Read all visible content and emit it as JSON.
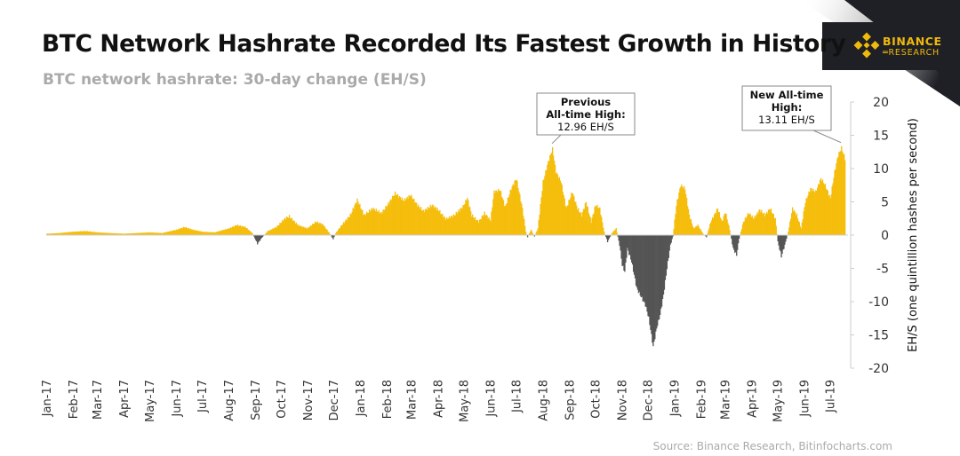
{
  "header": {
    "title": "BTC Network Hashrate Recorded Its Fastest Growth in History",
    "subtitle": "BTC network hashrate: 30-day change (EH/S)"
  },
  "logo": {
    "name": "BINANCE",
    "sub": "RESEARCH"
  },
  "source": "Source: Binance Research, Bitinfocharts.com",
  "colors": {
    "positive": "#f5bd0c",
    "negative": "#555555",
    "brand": "#f0b90b",
    "logo_bg": "#1e2026"
  },
  "chart_data": {
    "type": "area",
    "title": "BTC network hashrate: 30-day change (EH/S)",
    "ylabel": "EH/S (one quintillion hashes per second)",
    "ylim": [
      -20,
      20
    ],
    "y_ticks": [
      20,
      15,
      10,
      5,
      0,
      -5,
      -10,
      -15,
      -20
    ],
    "y_axis_side": "right",
    "x_ticks": [
      "Jan-17",
      "Feb-17",
      "Mar-17",
      "Apr-17",
      "May-17",
      "Jun-17",
      "Jul-17",
      "Aug-17",
      "Sep-17",
      "Oct-17",
      "Nov-17",
      "Dec-17",
      "Jan-18",
      "Feb-18",
      "Mar-18",
      "Apr-18",
      "May-18",
      "Jun-18",
      "Jul-18",
      "Aug-18",
      "Sep-18",
      "Oct-18",
      "Nov-18",
      "Dec-18",
      "Jan-19",
      "Feb-19",
      "Mar-19",
      "Apr-19",
      "May-19",
      "Jun-19",
      "Jul-19"
    ],
    "x_range": [
      "2017-01-01",
      "2019-07-18"
    ],
    "series": [
      {
        "values": [
          [
            "2017-01-01",
            0.2
          ],
          [
            "2017-01-15",
            0.3
          ],
          [
            "2017-02-01",
            0.5
          ],
          [
            "2017-02-15",
            0.6
          ],
          [
            "2017-03-01",
            0.4
          ],
          [
            "2017-03-15",
            0.3
          ],
          [
            "2017-04-01",
            0.2
          ],
          [
            "2017-04-15",
            0.3
          ],
          [
            "2017-05-01",
            0.4
          ],
          [
            "2017-05-15",
            0.3
          ],
          [
            "2017-06-01",
            0.8
          ],
          [
            "2017-06-10",
            1.2
          ],
          [
            "2017-06-20",
            0.8
          ],
          [
            "2017-07-01",
            0.5
          ],
          [
            "2017-07-15",
            0.4
          ],
          [
            "2017-08-01",
            1.0
          ],
          [
            "2017-08-10",
            1.5
          ],
          [
            "2017-08-20",
            1.2
          ],
          [
            "2017-08-28",
            0.3
          ],
          [
            "2017-09-03",
            -1.3
          ],
          [
            "2017-09-08",
            -0.4
          ],
          [
            "2017-09-15",
            0.6
          ],
          [
            "2017-09-25",
            1.2
          ],
          [
            "2017-10-05",
            2.5
          ],
          [
            "2017-10-10",
            2.8
          ],
          [
            "2017-10-20",
            1.5
          ],
          [
            "2017-10-31",
            1.0
          ],
          [
            "2017-11-10",
            2.0
          ],
          [
            "2017-11-18",
            1.6
          ],
          [
            "2017-11-25",
            0.4
          ],
          [
            "2017-11-30",
            -0.6
          ],
          [
            "2017-12-03",
            0.3
          ],
          [
            "2017-12-10",
            1.5
          ],
          [
            "2017-12-20",
            3.0
          ],
          [
            "2017-12-28",
            5.3
          ],
          [
            "2018-01-05",
            3.0
          ],
          [
            "2018-01-15",
            4.0
          ],
          [
            "2018-01-25",
            3.3
          ],
          [
            "2018-02-01",
            4.5
          ],
          [
            "2018-02-10",
            6.3
          ],
          [
            "2018-02-20",
            5.2
          ],
          [
            "2018-02-28",
            6.0
          ],
          [
            "2018-03-08",
            4.5
          ],
          [
            "2018-03-15",
            3.6
          ],
          [
            "2018-03-25",
            4.5
          ],
          [
            "2018-04-01",
            3.8
          ],
          [
            "2018-04-10",
            2.4
          ],
          [
            "2018-04-20",
            3.0
          ],
          [
            "2018-04-30",
            4.3
          ],
          [
            "2018-05-05",
            5.6
          ],
          [
            "2018-05-10",
            3.0
          ],
          [
            "2018-05-18",
            2.0
          ],
          [
            "2018-05-25",
            3.3
          ],
          [
            "2018-06-01",
            2.2
          ],
          [
            "2018-06-05",
            6.5
          ],
          [
            "2018-06-12",
            6.8
          ],
          [
            "2018-06-18",
            4.2
          ],
          [
            "2018-06-25",
            7.0
          ],
          [
            "2018-07-01",
            8.5
          ],
          [
            "2018-07-08",
            4.0
          ],
          [
            "2018-07-12",
            0.5
          ],
          [
            "2018-07-14",
            -0.3
          ],
          [
            "2018-07-18",
            0.8
          ],
          [
            "2018-07-22",
            -0.2
          ],
          [
            "2018-07-26",
            1.0
          ],
          [
            "2018-08-01",
            8.0
          ],
          [
            "2018-08-07",
            11.0
          ],
          [
            "2018-08-12",
            12.96
          ],
          [
            "2018-08-16",
            9.5
          ],
          [
            "2018-08-22",
            8.0
          ],
          [
            "2018-08-28",
            4.0
          ],
          [
            "2018-09-04",
            6.5
          ],
          [
            "2018-09-10",
            4.0
          ],
          [
            "2018-09-15",
            3.0
          ],
          [
            "2018-09-20",
            5.0
          ],
          [
            "2018-09-26",
            2.0
          ],
          [
            "2018-10-01",
            4.5
          ],
          [
            "2018-10-06",
            4.0
          ],
          [
            "2018-10-11",
            0.5
          ],
          [
            "2018-10-15",
            -1.0
          ],
          [
            "2018-10-20",
            0.3
          ],
          [
            "2018-10-25",
            1.0
          ],
          [
            "2018-10-29",
            -1.5
          ],
          [
            "2018-11-01",
            -4.5
          ],
          [
            "2018-11-04",
            -5.5
          ],
          [
            "2018-11-07",
            -2.0
          ],
          [
            "2018-11-12",
            -4.0
          ],
          [
            "2018-11-18",
            -8.0
          ],
          [
            "2018-11-24",
            -9.5
          ],
          [
            "2018-11-28",
            -10.5
          ],
          [
            "2018-12-02",
            -12.5
          ],
          [
            "2018-12-07",
            -16.8
          ],
          [
            "2018-12-11",
            -14.0
          ],
          [
            "2018-12-15",
            -12.0
          ],
          [
            "2018-12-19",
            -9.0
          ],
          [
            "2018-12-23",
            -5.0
          ],
          [
            "2018-12-27",
            -1.5
          ],
          [
            "2018-12-30",
            -0.2
          ],
          [
            "2019-01-03",
            4.5
          ],
          [
            "2019-01-08",
            7.5
          ],
          [
            "2019-01-13",
            7.0
          ],
          [
            "2019-01-18",
            3.0
          ],
          [
            "2019-01-23",
            1.0
          ],
          [
            "2019-01-28",
            1.5
          ],
          [
            "2019-02-03",
            0.2
          ],
          [
            "2019-02-07",
            -0.3
          ],
          [
            "2019-02-12",
            2.0
          ],
          [
            "2019-02-20",
            4.0
          ],
          [
            "2019-02-25",
            2.0
          ],
          [
            "2019-03-01",
            3.5
          ],
          [
            "2019-03-06",
            0.8
          ],
          [
            "2019-03-10",
            -2.0
          ],
          [
            "2019-03-14",
            -3.0
          ],
          [
            "2019-03-17",
            -0.5
          ],
          [
            "2019-03-22",
            2.0
          ],
          [
            "2019-03-28",
            3.3
          ],
          [
            "2019-04-03",
            2.5
          ],
          [
            "2019-04-10",
            3.8
          ],
          [
            "2019-04-16",
            3.0
          ],
          [
            "2019-04-22",
            4.0
          ],
          [
            "2019-04-28",
            2.5
          ],
          [
            "2019-05-01",
            -1.0
          ],
          [
            "2019-05-05",
            -3.2
          ],
          [
            "2019-05-09",
            -1.5
          ],
          [
            "2019-05-13",
            0.5
          ],
          [
            "2019-05-18",
            4.0
          ],
          [
            "2019-05-23",
            3.0
          ],
          [
            "2019-05-28",
            1.0
          ],
          [
            "2019-06-02",
            5.0
          ],
          [
            "2019-06-08",
            7.0
          ],
          [
            "2019-06-14",
            6.5
          ],
          [
            "2019-06-20",
            8.5
          ],
          [
            "2019-06-25",
            7.5
          ],
          [
            "2019-07-01",
            5.5
          ],
          [
            "2019-07-06",
            9.5
          ],
          [
            "2019-07-10",
            12.0
          ],
          [
            "2019-07-14",
            13.11
          ],
          [
            "2019-07-18",
            11.5
          ]
        ]
      }
    ],
    "annotations": [
      {
        "lines": [
          "Previous",
          "All-time High:",
          "12.96 EH/S"
        ],
        "date": "2018-08-12",
        "value": 12.96
      },
      {
        "lines": [
          "New All-time",
          "High:",
          "13.11 EH/S"
        ],
        "date": "2019-07-14",
        "value": 13.11
      }
    ]
  }
}
